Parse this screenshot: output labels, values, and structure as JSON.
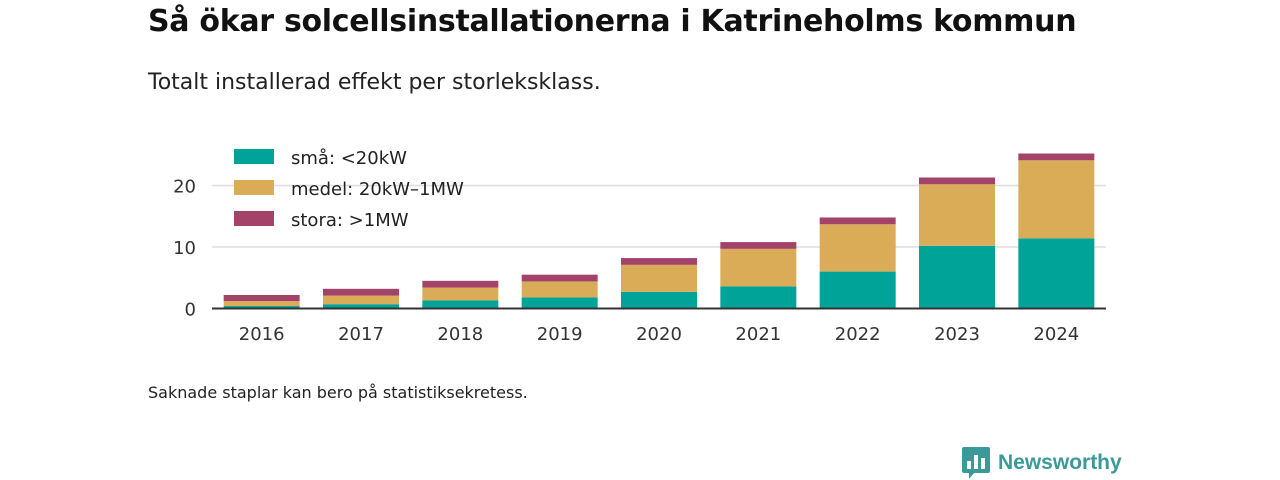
{
  "title": "Så ökar solcellsinstallationerna i Katrineholms kommun",
  "subtitle": "Totalt installerad effekt per storleksklass.",
  "footnote": "Saknade staplar kan bero på statistiksekretess.",
  "brand": {
    "name": "Newsworthy",
    "icon": "bar-chart-speech-bubble-icon",
    "color": "#3a9a9a"
  },
  "chart_data": {
    "type": "bar",
    "stacked": true,
    "categories": [
      "2016",
      "2017",
      "2018",
      "2019",
      "2020",
      "2021",
      "2022",
      "2023",
      "2024"
    ],
    "series": [
      {
        "name": "små: <20kW",
        "color": "#00a398",
        "values": [
          0.4,
          0.7,
          1.3,
          1.8,
          2.7,
          3.6,
          6.0,
          10.2,
          11.4
        ]
      },
      {
        "name": "medel: 20kW–1MW",
        "color": "#dbac58",
        "values": [
          0.8,
          1.4,
          2.1,
          2.6,
          4.4,
          6.1,
          7.7,
          10.0,
          12.7
        ]
      },
      {
        "name": "stora: >1MW",
        "color": "#a3436a",
        "values": [
          1.0,
          1.1,
          1.1,
          1.1,
          1.1,
          1.1,
          1.1,
          1.1,
          1.1
        ]
      }
    ],
    "yticks": [
      0,
      10,
      20
    ],
    "ylim": [
      0,
      26
    ],
    "xlabel": "",
    "ylabel": "",
    "grid": true,
    "legend_position": "top-left"
  }
}
